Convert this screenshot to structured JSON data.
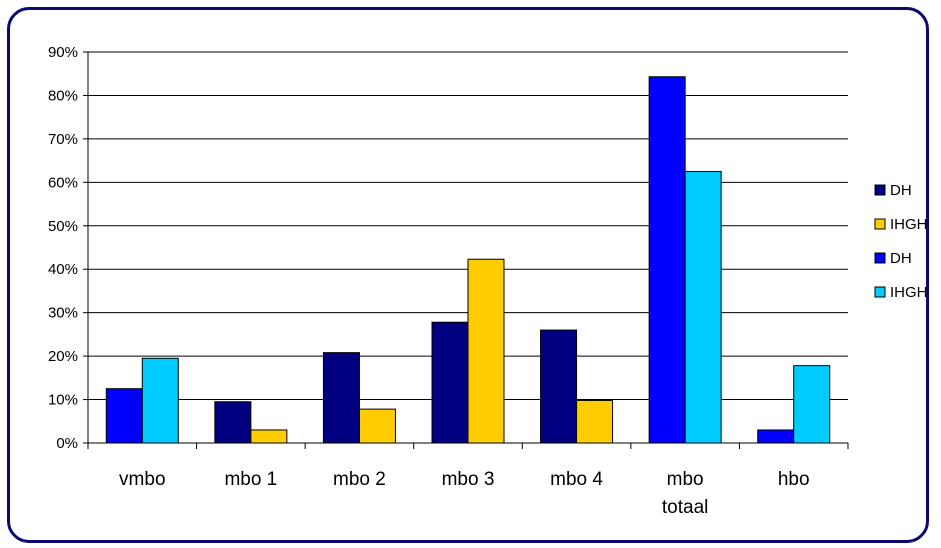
{
  "chart_data": {
    "type": "bar",
    "title": "",
    "xlabel": "",
    "ylabel": "",
    "ylim": [
      0,
      90
    ],
    "yticks": [
      "0%",
      "10%",
      "20%",
      "30%",
      "40%",
      "50%",
      "60%",
      "70%",
      "80%",
      "90%"
    ],
    "grid": true,
    "legend_position": "right",
    "categories": [
      [
        "vmbo"
      ],
      [
        "mbo 1"
      ],
      [
        "mbo 2"
      ],
      [
        "mbo 3"
      ],
      [
        "mbo 4"
      ],
      [
        "mbo",
        "totaal"
      ],
      [
        "hbo"
      ]
    ],
    "legend": [
      {
        "name": "DH",
        "color": "#000080"
      },
      {
        "name": "IHGH",
        "color": "#ffcc00"
      },
      {
        "name": "DH",
        "color": "#0000ff"
      },
      {
        "name": "IHGH",
        "color": "#00ccff"
      }
    ],
    "bars": [
      {
        "category": "vmbo",
        "series": "DH",
        "value": 12.5,
        "color": "#0000ff"
      },
      {
        "category": "vmbo",
        "series": "IHGH",
        "value": 19.5,
        "color": "#00ccff"
      },
      {
        "category": "mbo 1",
        "series": "DH",
        "value": 9.5,
        "color": "#000080"
      },
      {
        "category": "mbo 1",
        "series": "IHGH",
        "value": 3.0,
        "color": "#ffcc00"
      },
      {
        "category": "mbo 2",
        "series": "DH",
        "value": 20.8,
        "color": "#000080"
      },
      {
        "category": "mbo 2",
        "series": "IHGH",
        "value": 7.8,
        "color": "#ffcc00"
      },
      {
        "category": "mbo 3",
        "series": "DH",
        "value": 27.8,
        "color": "#000080"
      },
      {
        "category": "mbo 3",
        "series": "IHGH",
        "value": 42.3,
        "color": "#ffcc00"
      },
      {
        "category": "mbo 4",
        "series": "DH",
        "value": 26.0,
        "color": "#000080"
      },
      {
        "category": "mbo 4",
        "series": "IHGH",
        "value": 9.8,
        "color": "#ffcc00"
      },
      {
        "category": "mbo totaal",
        "series": "DH",
        "value": 84.3,
        "color": "#0000ff"
      },
      {
        "category": "mbo totaal",
        "series": "IHGH",
        "value": 62.5,
        "color": "#00ccff"
      },
      {
        "category": "hbo",
        "series": "DH",
        "value": 3.0,
        "color": "#0000ff"
      },
      {
        "category": "hbo",
        "series": "IHGH",
        "value": 17.8,
        "color": "#00ccff"
      }
    ]
  }
}
